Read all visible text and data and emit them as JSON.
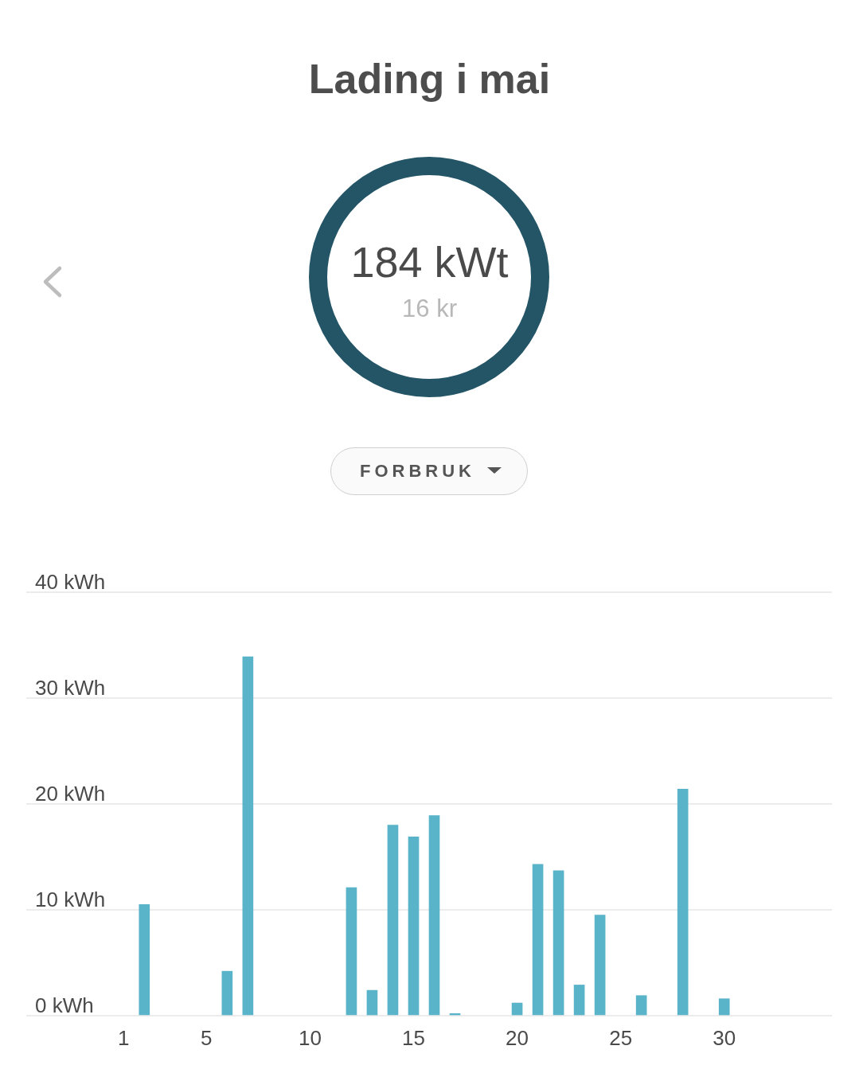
{
  "chart_data": {
    "type": "bar",
    "title": "Lading i mai",
    "annotations": [
      "184 kWt",
      "16 kr",
      "FORBRUK"
    ],
    "x": [
      2,
      6,
      7,
      12,
      13,
      14,
      15,
      16,
      17,
      20,
      21,
      22,
      23,
      24,
      26,
      28,
      30
    ],
    "values": [
      10.5,
      4.2,
      33.9,
      12.1,
      2.4,
      18.0,
      16.9,
      18.9,
      0.2,
      1.2,
      14.3,
      13.7,
      2.9,
      9.5,
      1.9,
      21.4,
      1.6
    ],
    "color": "#5ab4c9",
    "xlim": [
      -3.7,
      35.2
    ],
    "xticks": [
      1,
      5,
      10,
      15,
      20,
      25,
      30
    ],
    "ylim": [
      0,
      40
    ],
    "yticks": [
      {
        "value": 0,
        "label": "0 kWh"
      },
      {
        "value": 10,
        "label": "10 kWh"
      },
      {
        "value": 20,
        "label": "20 kWh"
      },
      {
        "value": 30,
        "label": "30 kWh"
      },
      {
        "value": 40,
        "label": "40 kWh"
      }
    ],
    "grid": "y"
  }
}
